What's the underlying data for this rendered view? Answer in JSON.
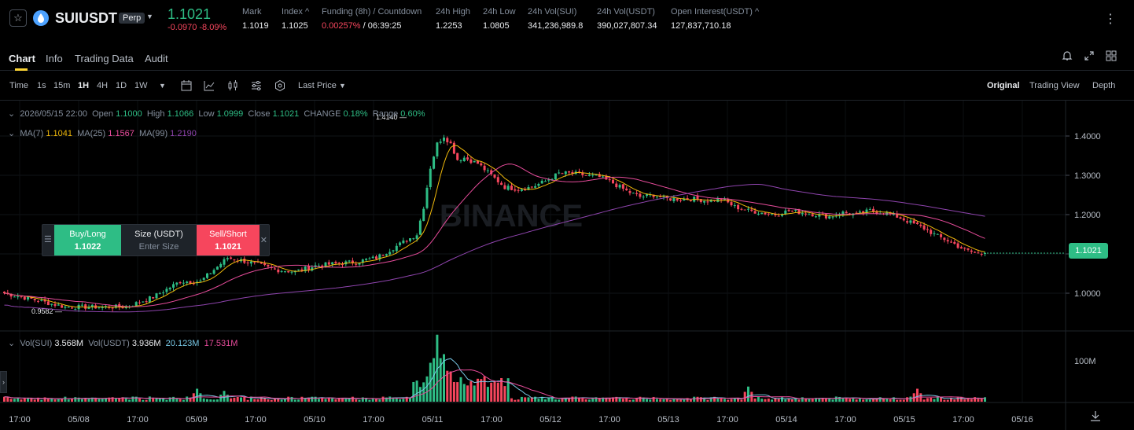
{
  "header": {
    "symbol": "SUIUSDT",
    "badge": "Perp",
    "last_price": "1.1021",
    "change": "-0.0970 -8.09%",
    "stats": [
      {
        "label": "Mark",
        "value": "1.1019"
      },
      {
        "label": "Index ^",
        "value": "1.1025"
      },
      {
        "label": "Funding (8h) / Countdown",
        "value_red": "0.00257%",
        "value": " / 06:39:25"
      },
      {
        "label": "24h High",
        "value": "1.2253"
      },
      {
        "label": "24h Low",
        "value": "1.0805"
      },
      {
        "label": "24h Vol(SUI)",
        "value": "341,236,989.8"
      },
      {
        "label": "24h Vol(USDT)",
        "value": "390,027,807.34"
      },
      {
        "label": "Open Interest(USDT) ^",
        "value": "127,837,710.18"
      }
    ]
  },
  "tabs": [
    "Chart",
    "Info",
    "Trading Data",
    "Audit"
  ],
  "toolbar": {
    "intervals": [
      "Time",
      "1s",
      "15m",
      "1H",
      "4H",
      "1D",
      "1W"
    ],
    "active_interval": "1H",
    "price_type": "Last Price",
    "views": [
      "Original",
      "Trading View",
      "Depth"
    ],
    "active_view": "Original"
  },
  "ohlc": {
    "date": "2026/05/15 22:00",
    "open_label": "Open",
    "open": "1.1000",
    "high_label": "High",
    "high": "1.1066",
    "low_label": "Low",
    "low": "1.0999",
    "close_label": "Close",
    "close": "1.1021",
    "change_label": "CHANGE",
    "change": "0.18%",
    "range_label": "Range",
    "range": "0.60%"
  },
  "ma": {
    "ma7_label": "MA(7)",
    "ma7": "1.1041",
    "ma25_label": "MA(25)",
    "ma25": "1.1567",
    "ma99_label": "MA(99)",
    "ma99": "1.2190"
  },
  "vol": {
    "sui_label": "Vol(SUI)",
    "sui": "3.568M",
    "usdt_label": "Vol(USDT)",
    "usdt": "3.936M",
    "ma1": "20.123M",
    "ma2": "17.531M"
  },
  "order": {
    "buy_label": "Buy/Long",
    "buy_price": "1.1022",
    "size_label": "Size (USDT)",
    "size_placeholder": "Enter Size",
    "sell_label": "Sell/Short",
    "sell_price": "1.1021"
  },
  "current_price_tag": "1.1021",
  "watermark": "BINANCE",
  "colors": {
    "up": "#2ebd85",
    "down": "#f6465d",
    "ma7": "#f0b90b",
    "ma25": "#e74c9b",
    "ma99": "#8e44ad",
    "accent": "#fcd535"
  },
  "chart_data": {
    "type": "candlestick",
    "price_axis": [
      "1.4000",
      "1.3000",
      "1.2000",
      "1.1000",
      "1.0000"
    ],
    "volume_axis": [
      "100M"
    ],
    "time_axis": [
      "17:00",
      "05/08",
      "17:00",
      "05/09",
      "17:00",
      "05/10",
      "17:00",
      "05/11",
      "17:00",
      "05/12",
      "17:00",
      "05/13",
      "17:00",
      "05/14",
      "17:00",
      "05/15",
      "17:00",
      "05/16"
    ],
    "high_marker": "1.4140",
    "low_marker": "0.9582",
    "ylim": [
      0.91,
      1.46
    ],
    "close_anchors": [
      [
        0,
        1.0
      ],
      [
        8,
        0.985
      ],
      [
        18,
        0.965
      ],
      [
        28,
        0.965
      ],
      [
        36,
        0.965
      ],
      [
        44,
        0.99
      ],
      [
        52,
        1.03
      ],
      [
        58,
        1.03
      ],
      [
        62,
        1.06
      ],
      [
        66,
        1.09
      ],
      [
        72,
        1.08
      ],
      [
        80,
        1.06
      ],
      [
        86,
        1.055
      ],
      [
        92,
        1.07
      ],
      [
        98,
        1.075
      ],
      [
        104,
        1.08
      ],
      [
        110,
        1.09
      ],
      [
        114,
        1.11
      ],
      [
        118,
        1.13
      ],
      [
        122,
        1.15
      ],
      [
        124,
        1.22
      ],
      [
        126,
        1.32
      ],
      [
        128,
        1.38
      ],
      [
        130,
        1.4
      ],
      [
        132,
        1.38
      ],
      [
        134,
        1.34
      ],
      [
        136,
        1.345
      ],
      [
        140,
        1.33
      ],
      [
        144,
        1.3
      ],
      [
        148,
        1.27
      ],
      [
        152,
        1.265
      ],
      [
        156,
        1.27
      ],
      [
        160,
        1.285
      ],
      [
        164,
        1.305
      ],
      [
        168,
        1.305
      ],
      [
        172,
        1.3
      ],
      [
        176,
        1.295
      ],
      [
        180,
        1.28
      ],
      [
        184,
        1.26
      ],
      [
        188,
        1.245
      ],
      [
        192,
        1.25
      ],
      [
        196,
        1.24
      ],
      [
        200,
        1.24
      ],
      [
        204,
        1.24
      ],
      [
        208,
        1.235
      ],
      [
        212,
        1.24
      ],
      [
        216,
        1.22
      ],
      [
        220,
        1.21
      ],
      [
        224,
        1.205
      ],
      [
        228,
        1.2
      ],
      [
        232,
        1.21
      ],
      [
        236,
        1.205
      ],
      [
        240,
        1.2
      ],
      [
        244,
        1.195
      ],
      [
        248,
        1.205
      ],
      [
        252,
        1.2
      ],
      [
        256,
        1.21
      ],
      [
        260,
        1.205
      ],
      [
        264,
        1.195
      ],
      [
        268,
        1.18
      ],
      [
        272,
        1.165
      ],
      [
        276,
        1.145
      ],
      [
        280,
        1.13
      ],
      [
        284,
        1.11
      ],
      [
        288,
        1.1
      ],
      [
        290,
        1.1021
      ]
    ],
    "volume_spikes_M": [
      [
        126,
        90
      ],
      [
        128,
        155
      ],
      [
        130,
        110
      ],
      [
        132,
        70
      ],
      [
        138,
        45
      ],
      [
        144,
        40
      ],
      [
        57,
        30
      ],
      [
        65,
        25
      ],
      [
        220,
        35
      ],
      [
        270,
        30
      ]
    ]
  }
}
